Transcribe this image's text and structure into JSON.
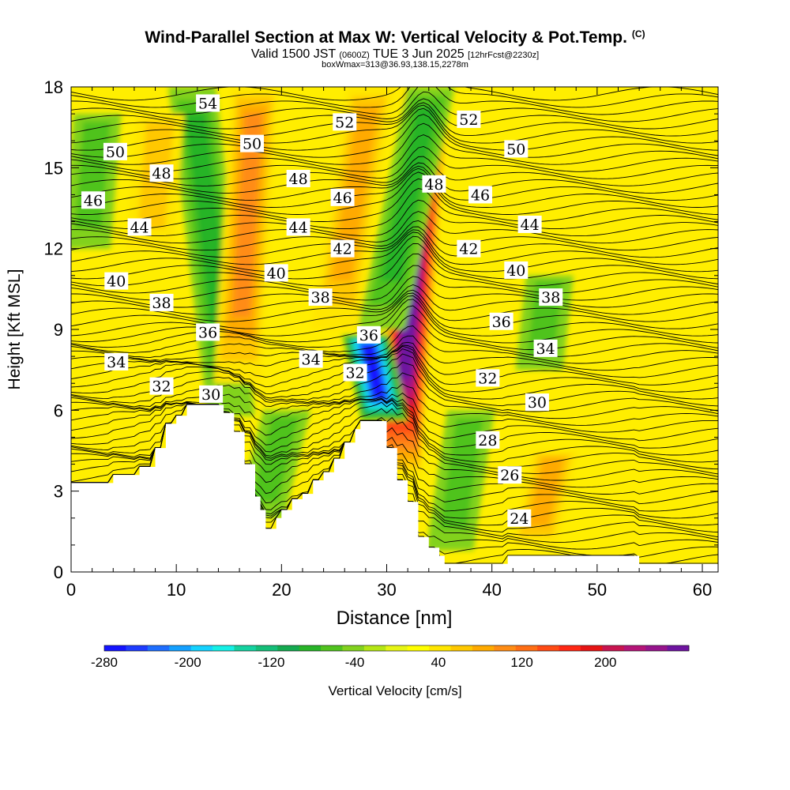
{
  "header": {
    "title": "Wind-Parallel Section at Max W: Vertical Velocity & Pot.Temp.",
    "title_mark": "(C)",
    "valid_prefix": "Valid 1500 JST",
    "valid_utc": "(0600Z)",
    "valid_date": "TUE 3 Jun 2025",
    "forecast_info": "[12hrFcst@2230z]",
    "box_info": "boxWmax=313@36.93,138.15,2278m"
  },
  "chart_data": {
    "type": "heatmap",
    "title": "Wind-Parallel Section at Max W: Vertical Velocity & Pot.Temp.",
    "xlabel": "Distance [nm]",
    "ylabel": "Height [Kft MSL]",
    "xlim": [
      0,
      61.5
    ],
    "ylim": [
      0,
      18
    ],
    "x_ticks": [
      0,
      10,
      20,
      30,
      40,
      50,
      60
    ],
    "y_ticks": [
      0,
      3,
      6,
      9,
      12,
      15,
      18
    ],
    "colorbar": {
      "label": "Vertical Velocity [cm/s]",
      "tick_labels": [
        "-280",
        "-200",
        "-120",
        "-40",
        "40",
        "120",
        "200"
      ],
      "tick_values": [
        -280,
        -200,
        -120,
        -40,
        40,
        120,
        200
      ],
      "min": -280,
      "max": 280,
      "colors": [
        "#1414ff",
        "#1e3cff",
        "#1e6eff",
        "#14a0ff",
        "#14d2ff",
        "#14f0e6",
        "#14d2a0",
        "#14be78",
        "#14aa50",
        "#28b428",
        "#50c31e",
        "#82d21e",
        "#b4e614",
        "#e6f514",
        "#ffff00",
        "#ffe600",
        "#ffc800",
        "#ffaa00",
        "#ff8c14",
        "#ff6e14",
        "#ff4b14",
        "#ff2814",
        "#e61414",
        "#c81450",
        "#b41478",
        "#96148c",
        "#6e14a0"
      ]
    },
    "terrain_kft": [
      [
        0,
        3.3
      ],
      [
        4,
        3.3
      ],
      [
        4,
        3.6
      ],
      [
        6.5,
        3.6
      ],
      [
        6.5,
        3.9
      ],
      [
        8,
        3.9
      ],
      [
        8,
        4.6
      ],
      [
        9,
        4.6
      ],
      [
        9,
        5.5
      ],
      [
        10,
        5.5
      ],
      [
        10,
        5.8
      ],
      [
        11,
        5.8
      ],
      [
        11,
        6.2
      ],
      [
        14.5,
        6.2
      ],
      [
        14.5,
        5.9
      ],
      [
        15.5,
        5.9
      ],
      [
        15.5,
        5.2
      ],
      [
        16.5,
        5.2
      ],
      [
        16.5,
        4.0
      ],
      [
        17.5,
        4.0
      ],
      [
        17.5,
        2.8
      ],
      [
        18,
        2.8
      ],
      [
        18,
        2.3
      ],
      [
        18.5,
        2.3
      ],
      [
        18.5,
        1.6
      ],
      [
        19.5,
        1.6
      ],
      [
        19.5,
        2.0
      ],
      [
        20,
        2.0
      ],
      [
        20,
        2.3
      ],
      [
        21,
        2.3
      ],
      [
        21,
        2.7
      ],
      [
        22,
        2.7
      ],
      [
        22,
        2.9
      ],
      [
        23,
        2.9
      ],
      [
        23,
        3.4
      ],
      [
        24,
        3.4
      ],
      [
        24,
        3.7
      ],
      [
        25,
        3.7
      ],
      [
        25,
        4.2
      ],
      [
        26,
        4.2
      ],
      [
        26,
        4.8
      ],
      [
        27,
        4.8
      ],
      [
        27,
        5.3
      ],
      [
        27.5,
        5.3
      ],
      [
        27.5,
        5.6
      ],
      [
        30,
        5.6
      ],
      [
        30,
        4.6
      ],
      [
        31,
        4.6
      ],
      [
        31,
        3.4
      ],
      [
        32,
        3.4
      ],
      [
        32,
        2.6
      ],
      [
        33,
        2.6
      ],
      [
        33,
        1.3
      ],
      [
        34,
        1.3
      ],
      [
        34,
        0.9
      ],
      [
        35,
        0.9
      ],
      [
        35,
        0.6
      ],
      [
        35.5,
        0.6
      ],
      [
        35.5,
        0.3
      ],
      [
        41.5,
        0.3
      ],
      [
        41.5,
        0.6
      ],
      [
        54,
        0.6
      ],
      [
        54,
        0.3
      ],
      [
        61.5,
        0.3
      ]
    ],
    "theta_contour_labels": [
      {
        "value": "54",
        "x": 13.0,
        "y": 17.4
      },
      {
        "value": "52",
        "x": 26.0,
        "y": 16.7
      },
      {
        "value": "52",
        "x": 37.8,
        "y": 16.8
      },
      {
        "value": "50",
        "x": 4.2,
        "y": 15.6
      },
      {
        "value": "50",
        "x": 17.2,
        "y": 15.9
      },
      {
        "value": "50",
        "x": 42.3,
        "y": 15.7
      },
      {
        "value": "48",
        "x": 8.6,
        "y": 14.8
      },
      {
        "value": "48",
        "x": 21.6,
        "y": 14.6
      },
      {
        "value": "48",
        "x": 34.5,
        "y": 14.4
      },
      {
        "value": "46",
        "x": 2.1,
        "y": 13.8
      },
      {
        "value": "46",
        "x": 25.8,
        "y": 13.9
      },
      {
        "value": "46",
        "x": 38.9,
        "y": 14.0
      },
      {
        "value": "44",
        "x": 6.5,
        "y": 12.8
      },
      {
        "value": "44",
        "x": 21.6,
        "y": 12.8
      },
      {
        "value": "44",
        "x": 43.6,
        "y": 12.9
      },
      {
        "value": "42",
        "x": 25.8,
        "y": 12.0
      },
      {
        "value": "42",
        "x": 37.8,
        "y": 12.0
      },
      {
        "value": "40",
        "x": 4.3,
        "y": 10.8
      },
      {
        "value": "40",
        "x": 19.5,
        "y": 11.1
      },
      {
        "value": "40",
        "x": 42.3,
        "y": 11.2
      },
      {
        "value": "38",
        "x": 8.6,
        "y": 10.0
      },
      {
        "value": "38",
        "x": 23.7,
        "y": 10.2
      },
      {
        "value": "38",
        "x": 45.6,
        "y": 10.2
      },
      {
        "value": "36",
        "x": 13.0,
        "y": 8.9
      },
      {
        "value": "36",
        "x": 28.3,
        "y": 8.8
      },
      {
        "value": "36",
        "x": 40.9,
        "y": 9.3
      },
      {
        "value": "34",
        "x": 4.3,
        "y": 7.8
      },
      {
        "value": "34",
        "x": 22.8,
        "y": 7.9
      },
      {
        "value": "34",
        "x": 45.1,
        "y": 8.3
      },
      {
        "value": "32",
        "x": 8.6,
        "y": 6.9
      },
      {
        "value": "32",
        "x": 27.0,
        "y": 7.4
      },
      {
        "value": "32",
        "x": 39.6,
        "y": 7.2
      },
      {
        "value": "30",
        "x": 13.3,
        "y": 6.6
      },
      {
        "value": "30",
        "x": 44.3,
        "y": 6.3
      },
      {
        "value": "28",
        "x": 39.6,
        "y": 4.9
      },
      {
        "value": "26",
        "x": 41.7,
        "y": 3.6
      },
      {
        "value": "24",
        "x": 42.6,
        "y": 2.0
      }
    ],
    "vertical_velocity_features": [
      {
        "kind": "updraft",
        "x_base": 31.0,
        "x_top": 33.8,
        "ymin": 3.5,
        "ymax": 18,
        "max_cms": 260
      },
      {
        "kind": "downdraft",
        "x_base": 29.8,
        "x_top": 28.0,
        "ymin": 5.6,
        "ymax": 8.8,
        "min_cms": -240
      },
      {
        "kind": "downdraft",
        "x_base": 15.2,
        "x_top": 11.5,
        "ymin": 5.8,
        "ymax": 18,
        "min_cms": -70
      },
      {
        "kind": "updraft",
        "x_base": 15.8,
        "x_top": 17.5,
        "ymin": 7.0,
        "ymax": 18,
        "max_cms": 90
      },
      {
        "kind": "downdraft",
        "x_base": 29.5,
        "x_top": 34.2,
        "ymin": 9.0,
        "ymax": 18,
        "min_cms": -60
      },
      {
        "kind": "updraft",
        "x_base": 25.0,
        "x_top": 28.5,
        "ymin": 9.0,
        "ymax": 18,
        "max_cms": 60
      },
      {
        "kind": "downdraft",
        "x_base": 18.0,
        "x_top": 20.5,
        "ymin": 2.0,
        "ymax": 6.0,
        "min_cms": -50
      },
      {
        "kind": "downdraft",
        "x_base": 36.0,
        "x_top": 38.0,
        "ymin": 0.8,
        "ymax": 6.0,
        "min_cms": -45
      },
      {
        "kind": "updraft",
        "x_base": 44.0,
        "x_top": 46.0,
        "ymin": 1.0,
        "ymax": 4.5,
        "max_cms": 60
      },
      {
        "kind": "downdraft",
        "x_base": 1.5,
        "x_top": 2.5,
        "ymin": 12.0,
        "ymax": 17.0,
        "min_cms": -40
      },
      {
        "kind": "updraft",
        "x_base": 7.5,
        "x_top": 8.5,
        "ymin": 12.0,
        "ymax": 17.0,
        "max_cms": 40
      },
      {
        "kind": "downdraft",
        "x_base": 44.5,
        "x_top": 45.5,
        "ymin": 7.5,
        "ymax": 11.0,
        "min_cms": -40
      }
    ]
  }
}
